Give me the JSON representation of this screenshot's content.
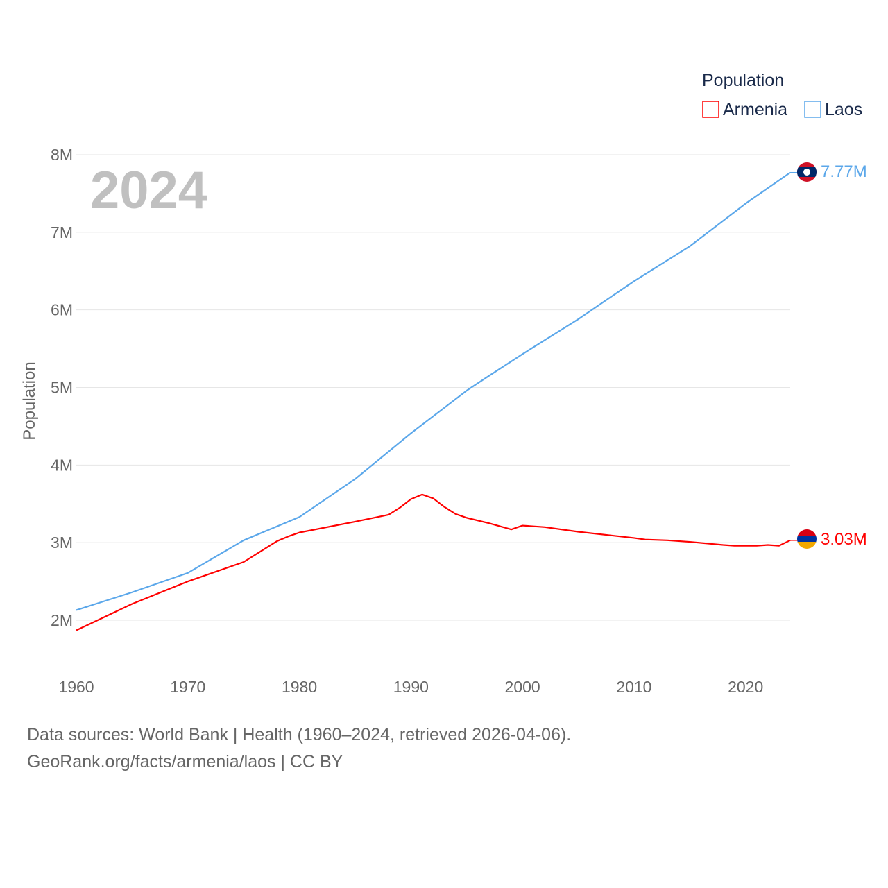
{
  "chart_data": {
    "type": "line",
    "title": "",
    "year_label": "2024",
    "xlabel": "",
    "ylabel": "Population",
    "xlim": [
      1960,
      2024
    ],
    "ylim": [
      1.5,
      8.0
    ],
    "x_ticks": [
      1960,
      1970,
      1980,
      1990,
      2000,
      2010,
      2020
    ],
    "x_tick_labels": [
      "1960",
      "1970",
      "1980",
      "1990",
      "2000",
      "2010",
      "2020"
    ],
    "y_ticks": [
      2,
      3,
      4,
      5,
      6,
      7,
      8
    ],
    "y_tick_labels": [
      "2M",
      "3M",
      "4M",
      "5M",
      "6M",
      "7M",
      "8M"
    ],
    "grid": true,
    "legend": {
      "title": "Population",
      "placement": "top-right"
    },
    "series": [
      {
        "name": "Armenia",
        "color": "#ff0000",
        "end_label": "3.03M",
        "flag": "armenia-flag",
        "x": [
          1960,
          1965,
          1970,
          1975,
          1976,
          1978,
          1979,
          1980,
          1985,
          1988,
          1989,
          1990,
          1991,
          1992,
          1993,
          1994,
          1995,
          1997,
          1999,
          2000,
          2002,
          2005,
          2010,
          2011,
          2013,
          2015,
          2018,
          2019,
          2021,
          2022,
          2023,
          2024
        ],
        "y": [
          1.87,
          2.21,
          2.5,
          2.75,
          2.84,
          3.02,
          3.08,
          3.13,
          3.27,
          3.36,
          3.45,
          3.56,
          3.62,
          3.57,
          3.46,
          3.37,
          3.32,
          3.25,
          3.17,
          3.22,
          3.2,
          3.14,
          3.06,
          3.04,
          3.03,
          3.01,
          2.97,
          2.96,
          2.96,
          2.97,
          2.96,
          3.03
        ]
      },
      {
        "name": "Laos",
        "color": "#5ba7ea",
        "end_label": "7.77M",
        "flag": "laos-flag",
        "x": [
          1960,
          1965,
          1970,
          1975,
          1980,
          1985,
          1990,
          1995,
          1997,
          2000,
          2005,
          2010,
          2015,
          2020,
          2024
        ],
        "y": [
          2.13,
          2.36,
          2.61,
          3.03,
          3.33,
          3.82,
          4.41,
          4.96,
          5.15,
          5.43,
          5.88,
          6.37,
          6.82,
          7.37,
          7.77
        ]
      }
    ]
  },
  "footer": {
    "line1": "Data sources: World Bank | Health (1960–2024, retrieved 2026-04-06).",
    "line2": "GeoRank.org/facts/armenia/laos | CC BY"
  }
}
